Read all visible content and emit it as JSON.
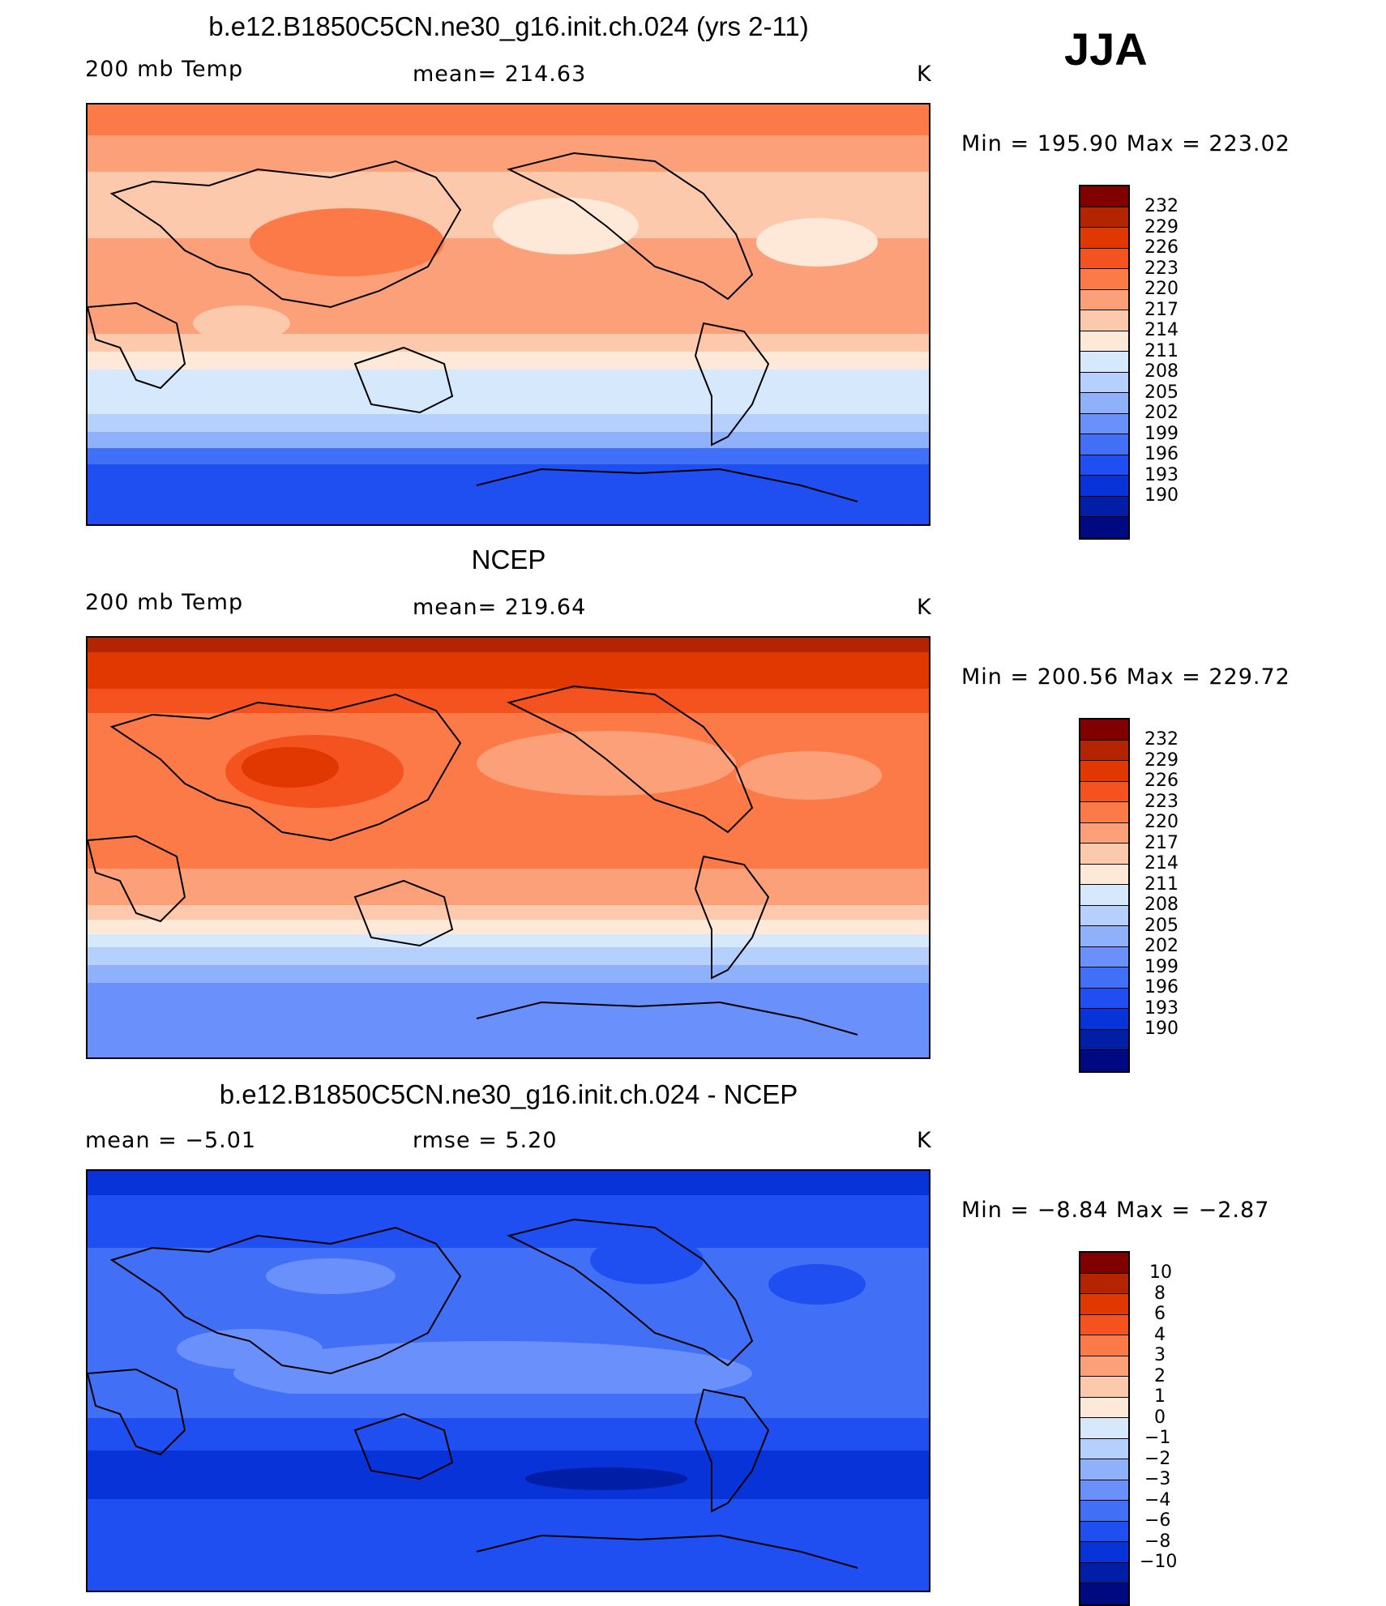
{
  "season": "JJA",
  "panels": [
    {
      "title": "b.e12.B1850C5CN.ne30_g16.init.ch.024 (yrs 2-11)",
      "left_label": "200 mb Temp",
      "center_label": "mean= 214.63",
      "right_label": "K",
      "minmax": "Min  =  195.90  Max  =  223.02",
      "colorbar_labels": [
        "232",
        "229",
        "226",
        "223",
        "220",
        "217",
        "214",
        "211",
        "208",
        "205",
        "202",
        "199",
        "196",
        "193",
        "190"
      ]
    },
    {
      "title": "NCEP",
      "left_label": "200 mb Temp",
      "center_label": "mean= 219.64",
      "right_label": "K",
      "minmax": "Min  =  200.56  Max  =  229.72",
      "colorbar_labels": [
        "232",
        "229",
        "226",
        "223",
        "220",
        "217",
        "214",
        "211",
        "208",
        "205",
        "202",
        "199",
        "196",
        "193",
        "190"
      ]
    },
    {
      "title": "b.e12.B1850C5CN.ne30_g16.init.ch.024 - NCEP",
      "left_label": "mean  =    −5.01",
      "center_label": "rmse  =     5.20",
      "right_label": "K",
      "minmax": "Min  =    −8.84  Max  =    −2.87",
      "colorbar_labels": [
        "10",
        "8",
        "6",
        "4",
        "3",
        "2",
        "1",
        "0",
        "−1",
        "−2",
        "−3",
        "−4",
        "−6",
        "−8",
        "−10"
      ]
    }
  ],
  "colors": {
    "scale": [
      "#800000",
      "#b32400",
      "#e03800",
      "#f4521e",
      "#fc7a48",
      "#fca07a",
      "#fdc9ac",
      "#fee8d7",
      "#d6e8fb",
      "#b5d0fc",
      "#8fb1fc",
      "#6a91fb",
      "#4170f7",
      "#1f4ff0",
      "#0833d8",
      "#001fa6",
      "#000a80"
    ]
  },
  "chart_data": [
    {
      "type": "heatmap",
      "title": "b.e12.B1850C5CN.ne30_g16.init.ch.024 (yrs 2-11)",
      "variable": "200 mb Temp",
      "units": "K",
      "mean": 214.63,
      "min": 195.9,
      "max": 223.02,
      "contour_levels": [
        190,
        193,
        196,
        199,
        202,
        205,
        208,
        211,
        214,
        217,
        220,
        223,
        226,
        229,
        232
      ]
    },
    {
      "type": "heatmap",
      "title": "NCEP",
      "variable": "200 mb Temp",
      "units": "K",
      "mean": 219.64,
      "min": 200.56,
      "max": 229.72,
      "contour_levels": [
        190,
        193,
        196,
        199,
        202,
        205,
        208,
        211,
        214,
        217,
        220,
        223,
        226,
        229,
        232
      ]
    },
    {
      "type": "heatmap",
      "title": "b.e12.B1850C5CN.ne30_g16.init.ch.024 - NCEP",
      "units": "K",
      "mean": -5.01,
      "rmse": 5.2,
      "min": -8.84,
      "max": -2.87,
      "contour_levels": [
        -10,
        -8,
        -6,
        -4,
        -3,
        -2,
        -1,
        0,
        1,
        2,
        3,
        4,
        6,
        8,
        10
      ]
    }
  ]
}
